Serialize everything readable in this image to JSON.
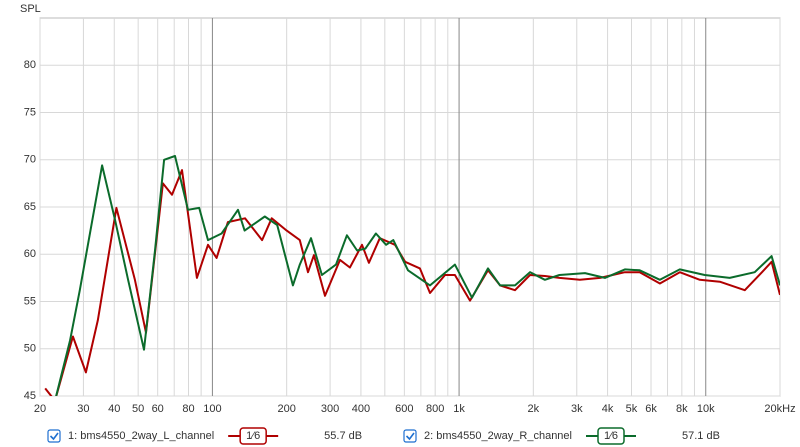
{
  "chart_data": {
    "type": "line",
    "y_label": "SPL",
    "log_x": true,
    "grid": true,
    "xlim": [
      20,
      20000
    ],
    "ylim": [
      45,
      85
    ],
    "yticks": [
      45,
      50,
      55,
      60,
      65,
      70,
      75,
      80
    ],
    "xticks": [
      20,
      30,
      40,
      50,
      60,
      80,
      100,
      200,
      300,
      400,
      600,
      800,
      {
        "value": 1000,
        "label": "1k"
      },
      {
        "value": 2000,
        "label": "2k"
      },
      {
        "value": 3000,
        "label": "3k"
      },
      {
        "value": 4000,
        "label": "4k"
      },
      {
        "value": 5000,
        "label": "5k"
      },
      {
        "value": 6000,
        "label": "6k"
      },
      {
        "value": 8000,
        "label": "8k"
      },
      {
        "value": 10000,
        "label": "10k"
      },
      {
        "value": 20000,
        "label": "20kHz"
      }
    ],
    "x_minor_grid": [
      70,
      90,
      500,
      700,
      900,
      7000,
      9000
    ],
    "series": [
      {
        "name": "1: bms4550_2way_L_channel",
        "color": "#b00000",
        "smoothing": "1⁄6",
        "level": "55.7 dB",
        "x": [
          21,
          23,
          27.2,
          30.7,
          34.3,
          40.8,
          48.5,
          53.8,
          63,
          68.6,
          75.3,
          86.5,
          96,
          104,
          115.6,
          135.5,
          159,
          174,
          200,
          226,
          244,
          258,
          286,
          329,
          361,
          404,
          431,
          477,
          550,
          604,
          694,
          762,
          877,
          962,
          1107,
          1310,
          1467,
          1685,
          1938,
          2228,
          2550,
          3090,
          3730,
          4700,
          5400,
          6520,
          7850,
          9460,
          11400,
          14400,
          16900,
          18500,
          20000
        ],
        "values": [
          45.8,
          44.5,
          51.3,
          47.5,
          53.0,
          64.9,
          57.3,
          51.7,
          67.5,
          66.3,
          68.9,
          57.5,
          61.0,
          59.6,
          63.4,
          63.8,
          61.5,
          63.8,
          62.5,
          61.5,
          58.1,
          59.9,
          55.6,
          59.4,
          58.6,
          61.0,
          59.1,
          61.7,
          61.0,
          59.2,
          58.5,
          55.9,
          57.8,
          57.8,
          55.1,
          58.3,
          56.7,
          56.2,
          57.8,
          57.7,
          57.5,
          57.3,
          57.5,
          58.1,
          58.1,
          56.9,
          58.1,
          57.3,
          57.1,
          56.2,
          58.1,
          59.2,
          55.7
        ]
      },
      {
        "name": "2: bms4550_2way_R_channel",
        "color": "#0b6b2b",
        "smoothing": "1⁄6",
        "level": "57.1 dB",
        "x": [
          23,
          26.5,
          29,
          35.7,
          40.3,
          45.5,
          52.8,
          58.5,
          63.7,
          70.5,
          79.6,
          88.4,
          96,
          109,
          127,
          135,
          163,
          183,
          212,
          226,
          251,
          278,
          317,
          351,
          386,
          417,
          460,
          506,
          541,
          621,
          762,
          962,
          1128,
          1310,
          1467,
          1685,
          1938,
          2228,
          2550,
          3240,
          3900,
          4700,
          5400,
          6520,
          7850,
          9900,
          12500,
          15800,
          18500,
          20000
        ],
        "values": [
          44.5,
          50.9,
          56.2,
          69.4,
          63.6,
          57.3,
          49.9,
          60.4,
          70.0,
          70.4,
          64.7,
          64.9,
          61.5,
          62.2,
          64.7,
          62.5,
          64.0,
          63.1,
          56.7,
          58.9,
          61.7,
          57.8,
          58.9,
          62.0,
          60.4,
          60.6,
          62.2,
          61.0,
          61.5,
          58.3,
          56.7,
          58.9,
          55.4,
          58.5,
          56.7,
          56.7,
          58.1,
          57.3,
          57.8,
          58.0,
          57.5,
          58.4,
          58.3,
          57.3,
          58.4,
          57.8,
          57.5,
          58.1,
          59.8,
          56.7
        ]
      }
    ]
  }
}
